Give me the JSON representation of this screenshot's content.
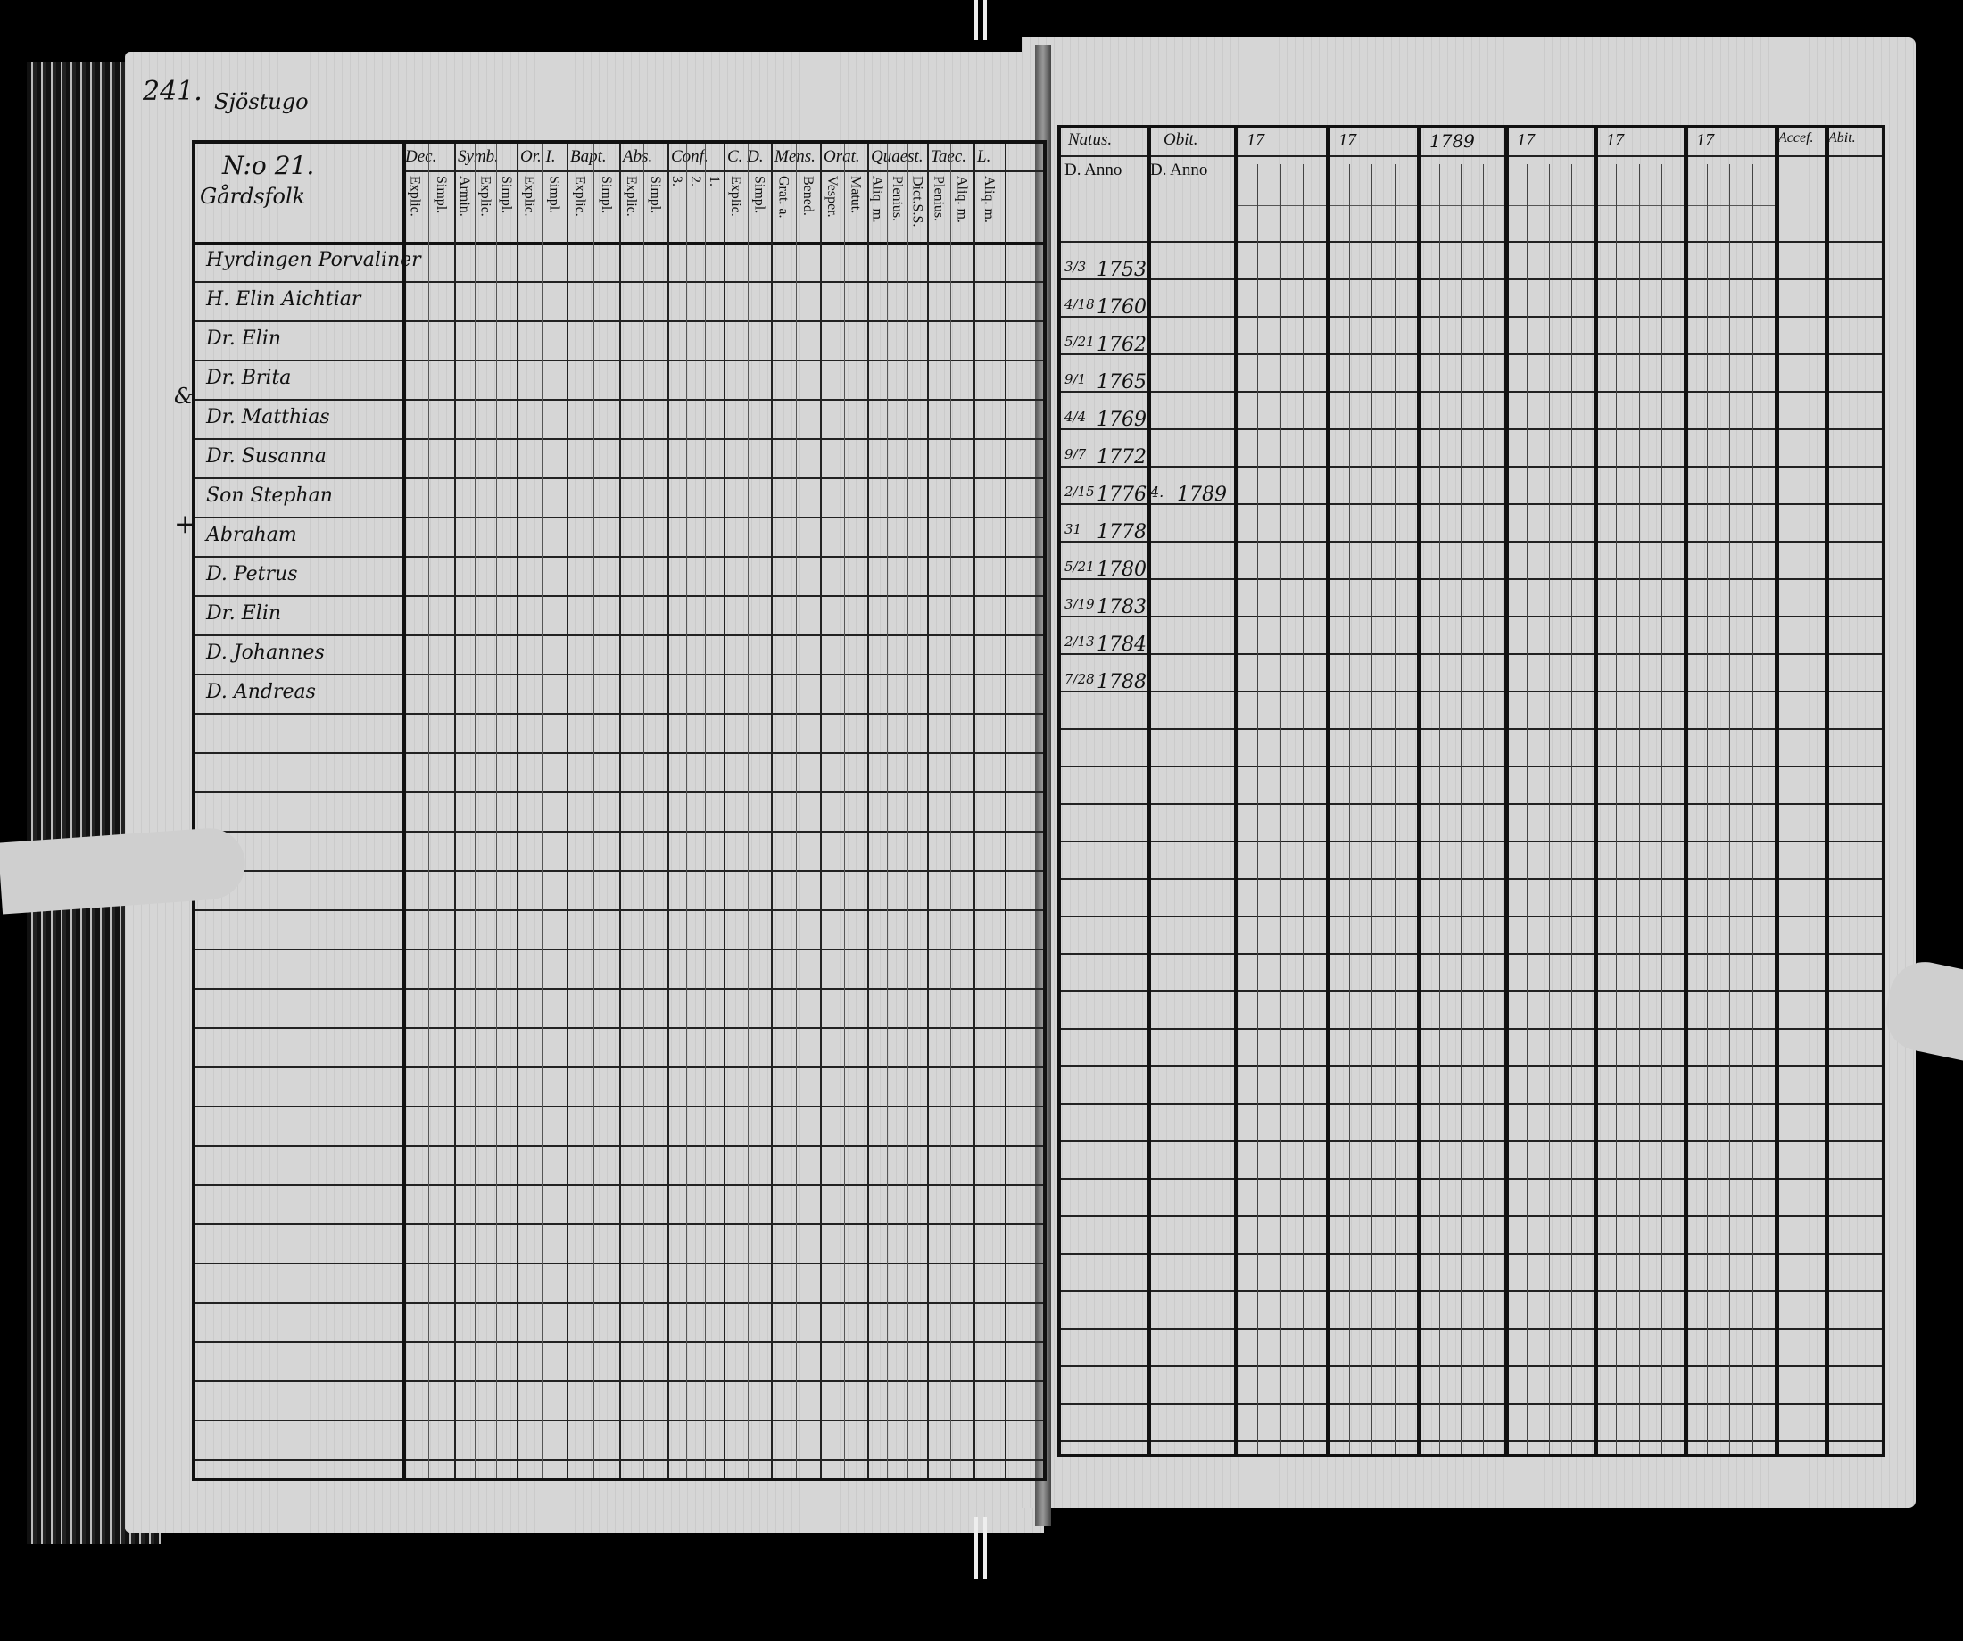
{
  "left_page": {
    "page_number": "241.",
    "parish_note": "Sjöstugo",
    "household_number": "N:o 21.",
    "subtitle": "Gårdsfolk",
    "margin_marks": [
      "&",
      "+"
    ],
    "column_groups": [
      {
        "label": "Dec.",
        "sub": [
          "Explic.",
          "Simpl."
        ]
      },
      {
        "label": "Symb.",
        "sub": [
          "Armin.",
          "Explic.",
          "Simpl."
        ]
      },
      {
        "label": "Or. I.",
        "sub": [
          "Explic.",
          "Simpl."
        ]
      },
      {
        "label": "Bapt.",
        "sub": [
          "Explic.",
          "Simpl."
        ]
      },
      {
        "label": "Abs.",
        "sub": [
          "Explic.",
          "Simpl."
        ]
      },
      {
        "label": "Conf.",
        "sub": [
          "3.",
          "2.",
          "1."
        ]
      },
      {
        "label": "C. D.",
        "sub": [
          "Explic.",
          "Simpl."
        ]
      },
      {
        "label": "Mens.",
        "sub": [
          "Grat. a.",
          "Bened."
        ]
      },
      {
        "label": "Orat.",
        "sub": [
          "Vesper.",
          "Matut."
        ]
      },
      {
        "label": "Quaest.",
        "sub": [
          "Aliq. m.",
          "Plenius.",
          "Dict.S.S."
        ]
      },
      {
        "label": "Taec.",
        "sub": [
          "Plenius.",
          "Aliq. m."
        ]
      },
      {
        "label": "L.",
        "sub": [
          "Aliq. m."
        ]
      }
    ],
    "names": [
      "Hyrdingen Porvaliner",
      "H. Elin Aichtiar",
      "Dr. Elin",
      "Dr. Brita",
      "Dr. Matthias",
      "Dr. Susanna",
      "Son Stephan",
      "Abraham",
      "D. Petrus",
      "Dr. Elin",
      "D. Johannes",
      "D. Andreas"
    ]
  },
  "right_page": {
    "headers": {
      "natus": "Natus.",
      "natus_sub": "D. Anno",
      "obit": "Obit.",
      "obit_sub": "D. Anno",
      "years": [
        "17",
        "17",
        "1789",
        "17",
        "17",
        "17"
      ],
      "accessit": "Accef.",
      "abiit": "Abit."
    },
    "births": [
      {
        "day": "3/3",
        "year": "1753"
      },
      {
        "day": "4/18",
        "year": "1760"
      },
      {
        "day": "5/21",
        "year": "1762"
      },
      {
        "day": "9/1",
        "year": "1765"
      },
      {
        "day": "4/4",
        "year": "1769"
      },
      {
        "day": "9/7",
        "year": "1772"
      },
      {
        "day": "2/15",
        "year": "1776"
      },
      {
        "day": "31",
        "year": "1778"
      },
      {
        "day": "5/21",
        "year": "1780"
      },
      {
        "day": "3/19",
        "year": "1783"
      },
      {
        "day": "2/13",
        "year": "1784"
      },
      {
        "day": "7/28",
        "year": "1788"
      }
    ],
    "death": {
      "row": 6,
      "day": "4.",
      "year": "1789"
    }
  }
}
